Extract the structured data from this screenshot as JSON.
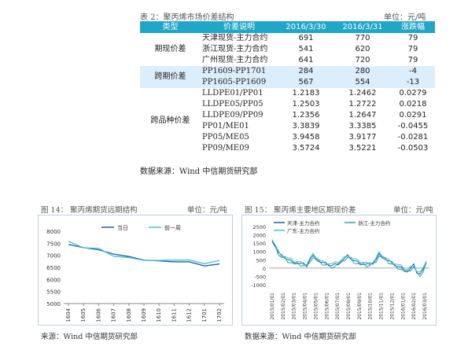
{
  "table2": {
    "title": "表 2：聚丙烯市场价差结构",
    "unit": "单位：元/吨",
    "headers": [
      "类型",
      "价差说明",
      "2016/3/30",
      "2016/3/31",
      "涨跌幅"
    ],
    "groups": [
      {
        "category": "期现价差",
        "highlight": false,
        "rows": [
          [
            "天津现货-主力合约",
            "691",
            "770",
            "79"
          ],
          [
            "浙江现货-主力合约",
            "541",
            "620",
            "79"
          ],
          [
            "广州现货-主力合约",
            "641",
            "720",
            "79"
          ]
        ]
      },
      {
        "category": "跨期价差",
        "highlight": true,
        "rows": [
          [
            "PP1609-PP1701",
            "284",
            "280",
            "-4"
          ],
          [
            "PP1605-PP1609",
            "567",
            "554",
            "-13"
          ]
        ]
      },
      {
        "category": "跨品种价差",
        "highlight": false,
        "rows": [
          [
            "LLDPE01/PP01",
            "1.2183",
            "1.2462",
            "0.0279"
          ],
          [
            "LLDPE05/PP05",
            "1.2503",
            "1.2722",
            "0.0218"
          ],
          [
            "LLDPE09/PP09",
            "1.2356",
            "1.2647",
            "0.0291"
          ],
          [
            "PP01/ME01",
            "3.3839",
            "3.3385",
            "-0.0455"
          ],
          [
            "PP05/ME05",
            "3.9458",
            "3.9177",
            "-0.0281"
          ],
          [
            "PP09/ME09",
            "3.5724",
            "3.5221",
            "-0.0503"
          ]
        ]
      }
    ],
    "source": "数据来源：Wind 中信期货研究部"
  },
  "figure14": {
    "title": "图 14：    聚丙烯期货远期结构",
    "unit": "单位：元/吨",
    "source": "来源：Wind 中信期货研究部"
  },
  "figure15": {
    "title": "图 15：    聚丙烯主要地区期现价差",
    "unit": "单位：元/吨",
    "source": "数据来源：Wind 中信期货研究部"
  },
  "chart_data": [
    {
      "type": "line",
      "categories": [
        "1604",
        "1605",
        "1606",
        "1607",
        "1608",
        "1609",
        "1610",
        "1611",
        "1612",
        "1701",
        "1702"
      ],
      "series": [
        {
          "name": "当日",
          "color": "#1f5fa8",
          "values": [
            7450,
            7320,
            7230,
            7050,
            6950,
            6800,
            6770,
            6730,
            6730,
            6560,
            6640
          ]
        },
        {
          "name": "前一周",
          "color": "#3fbfd8",
          "values": [
            7580,
            7310,
            7290,
            6960,
            6910,
            6790,
            6790,
            6800,
            6810,
            6650,
            6790
          ]
        }
      ],
      "yticks": [
        5000,
        5500,
        6000,
        6500,
        7000,
        7500,
        8000
      ],
      "ylim": [
        5000,
        8000
      ],
      "legend_position": "top"
    },
    {
      "type": "line",
      "x_labels": [
        "2015/01/01",
        "2015/02/01",
        "2015/03/01",
        "2015/04/01",
        "2015/05/01",
        "2015/06/01",
        "2015/07/01",
        "2015/08/01",
        "2015/09/01",
        "2015/10/01",
        "2015/11/01",
        "2015/12/01",
        "2016/01/01",
        "2016/02/01",
        "2016/03/01"
      ],
      "series": [
        {
          "name": "天津-主力合约",
          "color": "#1f5fa8"
        },
        {
          "name": "浙江-主力合约",
          "color": "#2aa6a0"
        },
        {
          "name": "广东-主力合约",
          "color": "#3fbfe0"
        }
      ],
      "yticks": [
        -1000,
        -500,
        0,
        500,
        1000,
        1500,
        2000,
        2500
      ],
      "ylim": [
        -1000,
        2500
      ],
      "legend_position": "top"
    }
  ]
}
